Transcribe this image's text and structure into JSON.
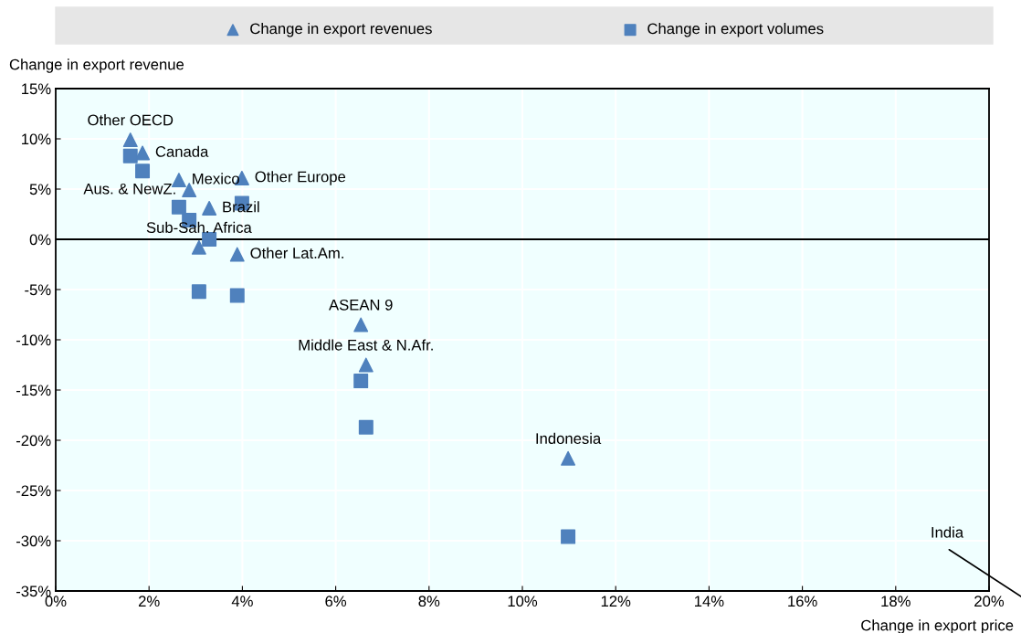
{
  "chart_data": {
    "type": "scatter",
    "xlabel": "Change in export price",
    "ylabel": "Change in export revenue",
    "series": [
      {
        "name": "Change in export revenues",
        "color": "#4f81bd",
        "marker": "triangle",
        "x": [
          1.6,
          1.86,
          2.64,
          2.86,
          3.29,
          3.07,
          3.99,
          3.89,
          6.54,
          6.65,
          10.98
        ],
        "values": [
          9.9,
          8.6,
          5.9,
          4.9,
          3.1,
          -0.8,
          6.1,
          -1.5,
          -8.5,
          -12.5,
          -21.8
        ]
      },
      {
        "name": "Change in export volumes",
        "color": "#4f81bd",
        "marker": "square",
        "x": [
          1.6,
          1.86,
          2.64,
          2.86,
          3.29,
          3.07,
          3.99,
          3.89,
          6.54,
          6.65,
          10.98
        ],
        "values": [
          8.3,
          6.8,
          3.2,
          1.9,
          0.0,
          -5.2,
          3.6,
          -5.6,
          -14.1,
          -18.7,
          -29.6
        ]
      }
    ],
    "annotations": [
      {
        "text": "Other OECD",
        "x": 1.6,
        "y": 9.9
      },
      {
        "text": "Canada",
        "x": 1.86,
        "y": 8.6
      },
      {
        "text": "Mexico",
        "x": 2.64,
        "y": 5.9
      },
      {
        "text": "Aus. & NewZ.",
        "x": 2.86,
        "y": 4.9
      },
      {
        "text": "Brazil",
        "x": 3.29,
        "y": 3.1
      },
      {
        "text": "Sub-Sah. Africa",
        "x": 3.07,
        "y": -0.8
      },
      {
        "text": "Other Europe",
        "x": 3.99,
        "y": 6.1
      },
      {
        "text": "Other Lat.Am.",
        "x": 3.89,
        "y": -1.5
      },
      {
        "text": "ASEAN 9",
        "x": 6.54,
        "y": -8.5
      },
      {
        "text": "Middle East & N.Afr.",
        "x": 6.65,
        "y": -12.5
      },
      {
        "text": "Indonesia",
        "x": 10.98,
        "y": -21.8
      },
      "India"
    ],
    "xlim": [
      0,
      20
    ],
    "xticks": [
      {
        "value": 0,
        "label": "0%"
      },
      {
        "value": 2,
        "label": "2%"
      },
      {
        "value": 4,
        "label": "4%"
      },
      {
        "value": 6,
        "label": "6%"
      },
      {
        "value": 8,
        "label": "8%"
      },
      {
        "value": 10,
        "label": "10%"
      },
      {
        "value": 12,
        "label": "12%"
      },
      {
        "value": 14,
        "label": "14%"
      },
      {
        "value": 16,
        "label": "16%"
      },
      {
        "value": 18,
        "label": "18%"
      },
      {
        "value": 20,
        "label": "20%"
      }
    ],
    "ylim": [
      -35,
      15
    ],
    "yticks": [
      {
        "value": -35,
        "label": "-35%"
      },
      {
        "value": -30,
        "label": "-30%"
      },
      {
        "value": -25,
        "label": "-25%"
      },
      {
        "value": -20,
        "label": "-20%"
      },
      {
        "value": -15,
        "label": "-15%"
      },
      {
        "value": -10,
        "label": "-10%"
      },
      {
        "value": -5,
        "label": "-5%"
      },
      {
        "value": 0,
        "label": "0%"
      },
      {
        "value": 5,
        "label": "5%"
      },
      {
        "value": 10,
        "label": "10%"
      },
      {
        "value": 15,
        "label": "15%"
      }
    ],
    "ref_lines": [
      {
        "axis": "y",
        "value": 0,
        "color": "#000000"
      }
    ],
    "grid": true,
    "legend": "top"
  }
}
